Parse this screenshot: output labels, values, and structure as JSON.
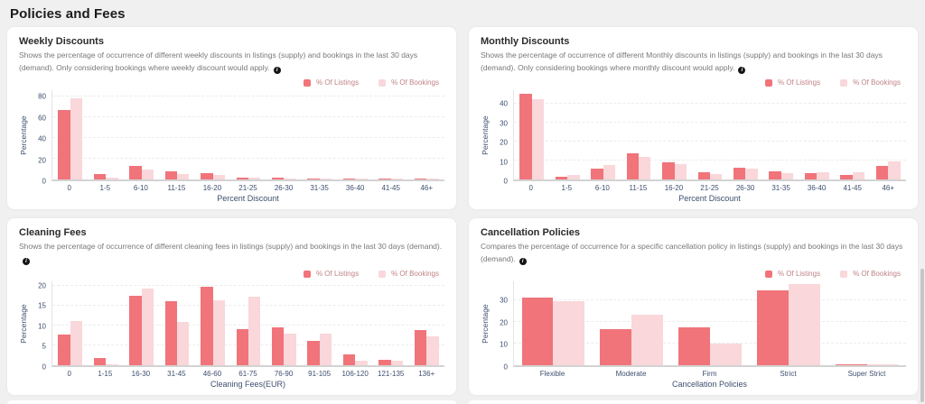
{
  "page": {
    "title": "Policies and Fees"
  },
  "legend": {
    "listings": "% Of Listings",
    "bookings": "% Of Bookings"
  },
  "colors": {
    "listings": "#f0747a",
    "bookings": "#f9d7da",
    "axis_text": "#3d4f6e",
    "legend_text": "#c08386"
  },
  "icons": {
    "info_glyph": "i"
  },
  "panels": [
    {
      "title": "Weekly Discounts",
      "description": "Shows the percentage of occurrence of different weekly discounts in listings (supply) and bookings in the last 30 days (demand). Only considering bookings where weekly discount would apply."
    },
    {
      "title": "Monthly Discounts",
      "description": "Shows the percentage of occurrence of different Monthly discounts in listings (supply) and bookings in the last 30 days (demand). Only considering bookings where monthly discount would apply."
    },
    {
      "title": "Cleaning Fees",
      "description": "Shows the percentage of occurrence of different cleaning fees in listings (supply) and bookings in the last 30 days (demand)."
    },
    {
      "title": "Cancellation Policies",
      "description": "Compares the percentage of occurrence for a specific cancellation policy in listings (supply) and bookings in the last 30 days (demand)."
    }
  ],
  "chart_data": [
    {
      "type": "bar",
      "title": "Weekly Discounts",
      "categories": [
        "0",
        "1-5",
        "6-10",
        "11-15",
        "16-20",
        "21-25",
        "26-30",
        "31-35",
        "36-40",
        "41-45",
        "46+"
      ],
      "series": [
        {
          "name": "% Of Listings",
          "values": [
            67,
            5,
            13.5,
            8,
            6.5,
            1.7,
            1.4,
            0.3,
            0.4,
            0.2,
            0.3
          ]
        },
        {
          "name": "% Of Bookings",
          "values": [
            78.5,
            1.5,
            10,
            5.5,
            4,
            2,
            1,
            0.3,
            1,
            0.2,
            0.4
          ]
        }
      ],
      "xlabel": "Percent Discount",
      "ylabel": "Percentage",
      "yticks": [
        0,
        20,
        40,
        60,
        80
      ],
      "ylim": [
        0,
        86
      ],
      "grid": true,
      "legend_position": "top-right"
    },
    {
      "type": "bar",
      "title": "Monthly Discounts",
      "categories": [
        "0",
        "1-5",
        "6-10",
        "11-15",
        "16-20",
        "21-25",
        "26-30",
        "31-35",
        "36-40",
        "41-45",
        "46+"
      ],
      "series": [
        {
          "name": "% Of Listings",
          "values": [
            45,
            1.5,
            5.5,
            13.7,
            9,
            4,
            6.3,
            4.3,
            3.5,
            2.5,
            7
          ]
        },
        {
          "name": "% Of Bookings",
          "values": [
            42.5,
            2.5,
            7.5,
            12,
            8,
            2.8,
            5.8,
            3.3,
            4,
            4,
            9.5
          ]
        }
      ],
      "xlabel": "Percent Discount",
      "ylabel": "Percentage",
      "yticks": [
        0,
        10,
        20,
        30,
        40
      ],
      "ylim": [
        0,
        47
      ],
      "grid": true,
      "legend_position": "top-right"
    },
    {
      "type": "bar",
      "title": "Cleaning Fees",
      "categories": [
        "0",
        "1-15",
        "16-30",
        "31-45",
        "46-60",
        "61-75",
        "76-90",
        "91-105",
        "106-120",
        "121-135",
        "136+"
      ],
      "series": [
        {
          "name": "% Of Listings",
          "values": [
            7.6,
            1.8,
            17.5,
            16.1,
            19.6,
            9.1,
            9.6,
            6.2,
            2.8,
            1.3,
            8.8
          ]
        },
        {
          "name": "% Of Bookings",
          "values": [
            11.2,
            0.3,
            19.3,
            10.8,
            16.3,
            17.1,
            7.9,
            7.9,
            1.2,
            1.2,
            7.2
          ]
        }
      ],
      "xlabel": "Cleaning Fees(EUR)",
      "ylabel": "Percentage",
      "yticks": [
        0,
        5,
        10,
        15,
        20
      ],
      "ylim": [
        0,
        21
      ],
      "grid": true,
      "legend_position": "top-right"
    },
    {
      "type": "bar",
      "title": "Cancellation Policies",
      "categories": [
        "Flexible",
        "Moderate",
        "Firm",
        "Strict",
        "Super Strict"
      ],
      "series": [
        {
          "name": "% Of Listings",
          "values": [
            31,
            16.8,
            17.5,
            34.5,
            0.5
          ]
        },
        {
          "name": "% Of Bookings",
          "values": [
            29.5,
            23.3,
            10,
            37.5,
            0.3
          ]
        }
      ],
      "xlabel": "Cancellation Policies",
      "ylabel": "Percentage",
      "yticks": [
        0,
        10,
        20,
        30
      ],
      "ylim": [
        0,
        38.5
      ],
      "grid": true,
      "legend_position": "top-right"
    }
  ]
}
